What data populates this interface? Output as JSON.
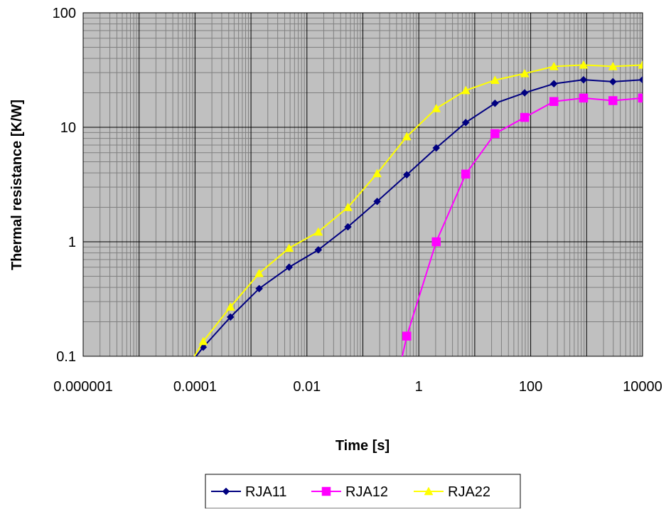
{
  "chart_data": {
    "type": "line",
    "title": "",
    "xlabel": "Time [s]",
    "ylabel": "Thermal resistance [K/W]",
    "x_scale": "log",
    "y_scale": "log",
    "xlim": [
      1e-06,
      10000
    ],
    "ylim": [
      0.1,
      100
    ],
    "x_ticks": [
      1e-06,
      0.0001,
      0.01,
      1,
      100,
      10000
    ],
    "x_tick_labels": [
      "0.000001",
      "0.0001",
      "0.01",
      "1",
      "100",
      "10000"
    ],
    "y_ticks": [
      0.1,
      1,
      10,
      100
    ],
    "y_tick_labels": [
      "0.1",
      "1",
      "10",
      "100"
    ],
    "grid": true,
    "plot_background": "#c0c0c0",
    "legend_position": "bottom",
    "series": [
      {
        "name": "RJA11",
        "color": "#000080",
        "marker": "diamond",
        "points": [
          [
            8e-05,
            0.085
          ],
          [
            0.00014,
            0.12
          ],
          [
            0.00043,
            0.22
          ],
          [
            0.0014,
            0.39
          ],
          [
            0.0048,
            0.6
          ],
          [
            0.016,
            0.85
          ],
          [
            0.054,
            1.35
          ],
          [
            0.18,
            2.25
          ],
          [
            0.61,
            3.85
          ],
          [
            2.05,
            6.6
          ],
          [
            6.9,
            11.0
          ],
          [
            23,
            16.2
          ],
          [
            78,
            20.0
          ],
          [
            260,
            24.0
          ],
          [
            880,
            26.0
          ],
          [
            2950,
            25.0
          ],
          [
            10000,
            26.0
          ]
        ]
      },
      {
        "name": "RJA12",
        "color": "#ff00ff",
        "marker": "square",
        "points": [
          [
            0.47,
            0.085
          ],
          [
            0.61,
            0.15
          ],
          [
            2.05,
            1.0
          ],
          [
            6.9,
            3.9
          ],
          [
            23,
            8.8
          ],
          [
            78,
            12.2
          ],
          [
            260,
            16.8
          ],
          [
            880,
            18.0
          ],
          [
            2950,
            17.1
          ],
          [
            10000,
            18.0
          ]
        ]
      },
      {
        "name": "RJA22",
        "color": "#ffff00",
        "marker": "triangle",
        "points": [
          [
            8e-05,
            0.085
          ],
          [
            0.00014,
            0.135
          ],
          [
            0.00043,
            0.27
          ],
          [
            0.0014,
            0.53
          ],
          [
            0.0048,
            0.88
          ],
          [
            0.016,
            1.22
          ],
          [
            0.054,
            2.0
          ],
          [
            0.18,
            3.95
          ],
          [
            0.61,
            8.3
          ],
          [
            2.05,
            14.6
          ],
          [
            6.9,
            21.0
          ],
          [
            23,
            25.8
          ],
          [
            78,
            29.5
          ],
          [
            260,
            34.0
          ],
          [
            880,
            35.0
          ],
          [
            2950,
            34.0
          ],
          [
            10000,
            35.0
          ]
        ]
      }
    ]
  }
}
